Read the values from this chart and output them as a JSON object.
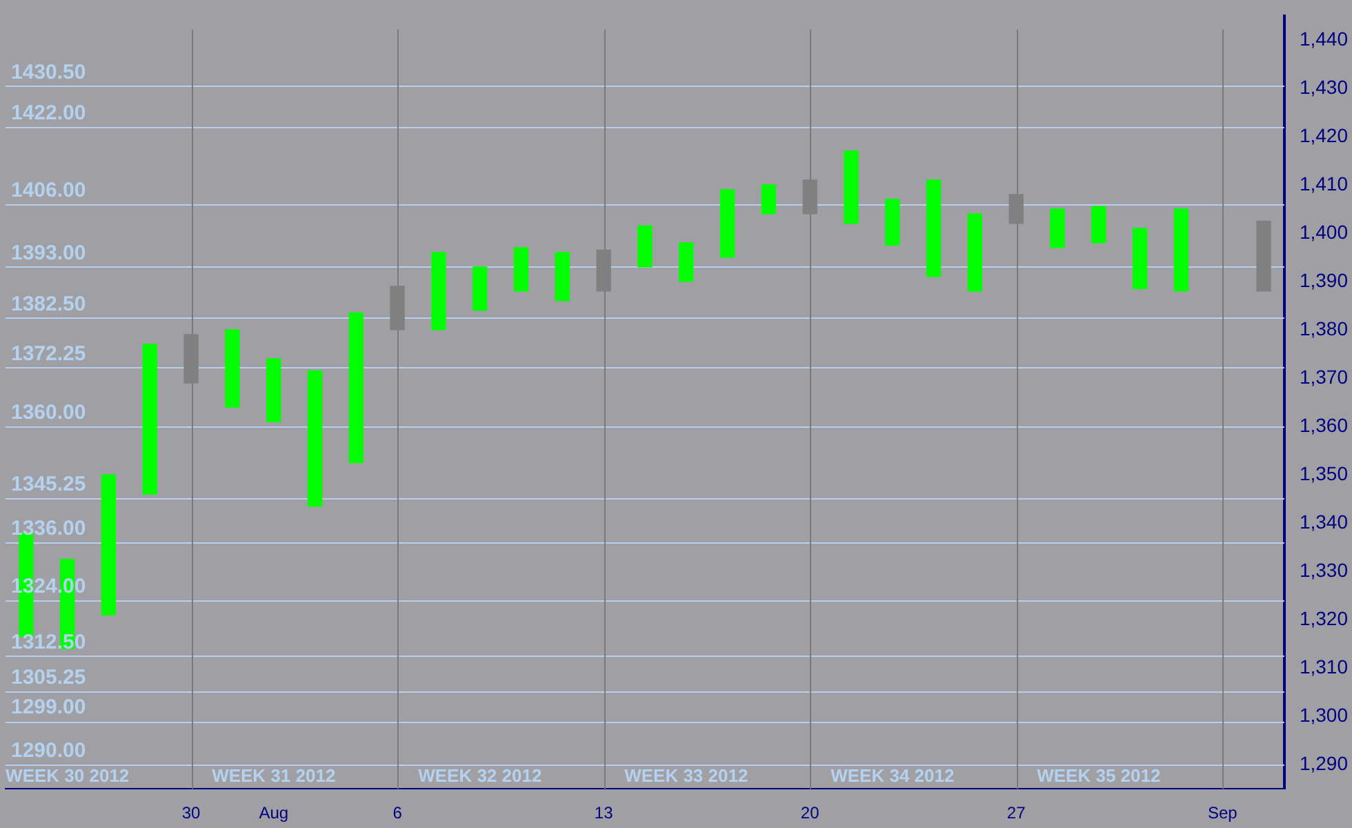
{
  "chart_data": {
    "type": "bar",
    "categories": [
      null,
      null,
      null,
      null,
      "30",
      null,
      "Aug",
      null,
      null,
      "6",
      null,
      null,
      null,
      null,
      "13",
      null,
      null,
      null,
      null,
      "20",
      null,
      null,
      null,
      null,
      "27",
      null,
      null,
      null,
      null,
      "Sep",
      null
    ],
    "base": [
      1316.5,
      1314,
      1321,
      1346,
      1369,
      1364,
      1361,
      1343.5,
      1352.5,
      1380,
      1380,
      1384,
      1388,
      1386,
      1388,
      1393,
      1390,
      1395,
      1404,
      1404,
      1402,
      1397.5,
      1391,
      1388,
      1402,
      1397,
      1398,
      1388.5,
      1388,
      null,
      1388
    ],
    "values": [
      21.5,
      18.5,
      29,
      31,
      10,
      16,
      13,
      28,
      31,
      9,
      16,
      9,
      9,
      10,
      8.5,
      8.5,
      8,
      14,
      6,
      7,
      15,
      9.5,
      20,
      16,
      6,
      8,
      7.5,
      12.5,
      17,
      null,
      14.5
    ],
    "colors": [
      "#00ff00",
      "#00ff00",
      "#00ff00",
      "#00ff00",
      "#808080",
      "#00ff00",
      "#00ff00",
      "#00ff00",
      "#00ff00",
      "#808080",
      "#00ff00",
      "#00ff00",
      "#00ff00",
      "#00ff00",
      "#808080",
      "#00ff00",
      "#00ff00",
      "#00ff00",
      "#00ff00",
      "#808080",
      "#00ff00",
      "#00ff00",
      "#00ff00",
      "#00ff00",
      "#808080",
      "#00ff00",
      "#00ff00",
      "#00ff00",
      "#00ff00",
      "#808080",
      "#808080"
    ],
    "ylim": [
      1285,
      1445
    ],
    "yticks": [
      {
        "value": 1290,
        "label": "1,290"
      },
      {
        "value": 1300,
        "label": "1,300"
      },
      {
        "value": 1310,
        "label": "1,310"
      },
      {
        "value": 1320,
        "label": "1,320"
      },
      {
        "value": 1330,
        "label": "1,330"
      },
      {
        "value": 1340,
        "label": "1,340"
      },
      {
        "value": 1350,
        "label": "1,350"
      },
      {
        "value": 1360,
        "label": "1,360"
      },
      {
        "value": 1370,
        "label": "1,370"
      },
      {
        "value": 1380,
        "label": "1,380"
      },
      {
        "value": 1390,
        "label": "1,390"
      },
      {
        "value": 1400,
        "label": "1,400"
      },
      {
        "value": 1410,
        "label": "1,410"
      },
      {
        "value": 1420,
        "label": "1,420"
      },
      {
        "value": 1430,
        "label": "1,430"
      },
      {
        "value": 1440,
        "label": "1,440"
      }
    ],
    "ref_lines": [
      {
        "axis": "y",
        "value": 1430.5,
        "label": "1430.50",
        "color": "#b4d2f0"
      },
      {
        "axis": "y",
        "value": 1422,
        "label": "1422.00",
        "color": "#b4d2f0"
      },
      {
        "axis": "y",
        "value": 1406,
        "label": "1406.00",
        "color": "#b4d2f0"
      },
      {
        "axis": "y",
        "value": 1393,
        "label": "1393.00",
        "color": "#b4d2f0"
      },
      {
        "axis": "y",
        "value": 1382.5,
        "label": "1382.50",
        "color": "#b4d2f0"
      },
      {
        "axis": "y",
        "value": 1372.25,
        "label": "1372.25",
        "color": "#b4d2f0"
      },
      {
        "axis": "y",
        "value": 1360,
        "label": "1360.00",
        "color": "#b4d2f0"
      },
      {
        "axis": "y",
        "value": 1345.25,
        "label": "1345.25",
        "color": "#b4d2f0"
      },
      {
        "axis": "y",
        "value": 1336,
        "label": "1336.00",
        "color": "#b4d2f0"
      },
      {
        "axis": "y",
        "value": 1324,
        "label": "1324.00",
        "color": "#b4d2f0"
      },
      {
        "axis": "y",
        "value": 1312.5,
        "label": "1312.50",
        "color": "#b4d2f0"
      },
      {
        "axis": "y",
        "value": 1305.25,
        "label": "1305.25",
        "color": "#b4d2f0"
      },
      {
        "axis": "y",
        "value": 1299,
        "label": "1299.00",
        "color": "#b4d2f0"
      },
      {
        "axis": "y",
        "value": 1290,
        "label": "1290.00",
        "color": "#b4d2f0"
      },
      {
        "axis": "x",
        "value": "30",
        "color": "#7a7a7e"
      },
      {
        "axis": "x",
        "value": "6",
        "color": "#7a7a7e"
      },
      {
        "axis": "x",
        "value": "13",
        "color": "#7a7a7e"
      },
      {
        "axis": "x",
        "value": "20",
        "color": "#7a7a7e"
      },
      {
        "axis": "x",
        "value": "27",
        "color": "#7a7a7e"
      },
      {
        "axis": "x",
        "value": "Sep",
        "color": "#7a7a7e"
      }
    ],
    "annotations": [
      "WEEK 30 2012",
      "WEEK 31 2012",
      "WEEK 32 2012",
      "WEEK 33 2012",
      "WEEK 34 2012",
      "WEEK 35 2012"
    ],
    "grid": false,
    "legend": false
  }
}
